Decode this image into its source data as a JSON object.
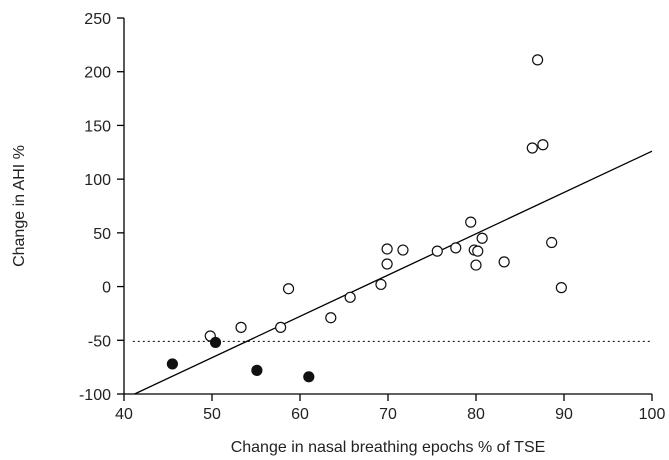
{
  "chart_data": {
    "type": "scatter",
    "xlabel": "Change in nasal breathing epochs % of TSE",
    "ylabel": "Change in AHI %",
    "xlim": [
      40,
      100
    ],
    "ylim": [
      -100,
      250
    ],
    "x_ticks": [
      40,
      50,
      60,
      70,
      80,
      90,
      100
    ],
    "y_ticks": [
      -100,
      -50,
      0,
      50,
      100,
      150,
      200,
      250
    ],
    "x_tick_labels": [
      "40",
      "50",
      "60",
      "70",
      "80",
      "90",
      "100"
    ],
    "y_tick_labels": [
      "-100",
      "-50",
      "0",
      "50",
      "100",
      "150",
      "200",
      "250"
    ],
    "grid": false,
    "series": [
      {
        "marker": "open-circle",
        "points": [
          [
            49.8,
            -46
          ],
          [
            53.3,
            -38
          ],
          [
            57.8,
            -38
          ],
          [
            58.7,
            -2
          ],
          [
            63.5,
            -29
          ],
          [
            65.7,
            -10
          ],
          [
            69.2,
            2
          ],
          [
            69.9,
            35
          ],
          [
            69.9,
            21
          ],
          [
            71.7,
            34
          ],
          [
            75.6,
            33
          ],
          [
            77.7,
            36
          ],
          [
            79.4,
            60
          ],
          [
            79.8,
            34
          ],
          [
            80.0,
            20
          ],
          [
            80.2,
            33
          ],
          [
            80.7,
            45
          ],
          [
            83.2,
            23
          ],
          [
            86.4,
            129
          ],
          [
            87.0,
            211
          ],
          [
            87.6,
            132
          ],
          [
            88.6,
            41
          ],
          [
            89.7,
            -1
          ]
        ]
      },
      {
        "marker": "filled-circle",
        "points": [
          [
            45.5,
            -72
          ],
          [
            50.4,
            -52
          ],
          [
            55.1,
            -78
          ],
          [
            61.0,
            -84
          ]
        ]
      }
    ],
    "regression_line": {
      "x": [
        41.2,
        100
      ],
      "y": [
        -100,
        126
      ]
    },
    "reference_line": {
      "y": -51,
      "style": "dotted",
      "x_range": [
        41,
        100
      ]
    }
  }
}
